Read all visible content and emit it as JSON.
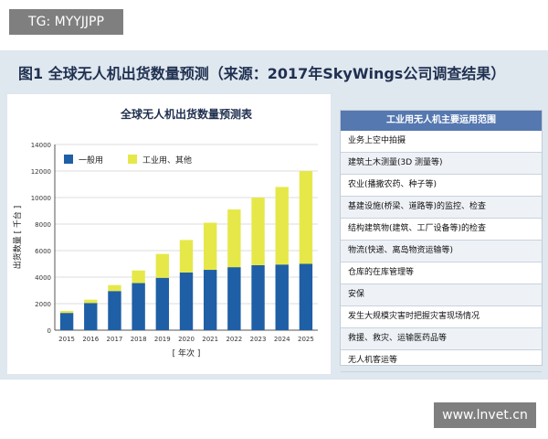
{
  "watermark_top": "TG: MYYJJPP",
  "watermark_bottom": "www.lnvet.cn",
  "figure_caption": "图1 全球无人机出货数量预测（来源：2017年SkyWings公司调查结果）",
  "table": {
    "header": "工业用无人机主要运用范围",
    "rows": [
      "业务上空中拍摄",
      "建筑土木测量(3D 测量等)",
      "农业(播撒农药、种子等)",
      "基建设施(桥梁、道路等)的监控、检查",
      "结构建筑物(建筑、工厂设备等)的检查",
      "物流(快递、离岛物资运输等)",
      "仓库的在库管理等",
      "安保",
      "发生大规模灾害时把握灾害现场情况",
      "救援、救灾、运输医药品等",
      "无人机客运等"
    ]
  },
  "chart_data": {
    "type": "bar",
    "stacked": true,
    "title": "全球无人机出货数量预测表",
    "xlabel": "[ 年次 ]",
    "ylabel": "出货数量 [ 千台 ]",
    "ylim": [
      0,
      14000
    ],
    "yticks": [
      0,
      2000,
      4000,
      6000,
      8000,
      10000,
      12000,
      14000
    ],
    "grid": true,
    "legend_position": "top-left",
    "categories": [
      "2015",
      "2016",
      "2017",
      "2018",
      "2019",
      "2020",
      "2021",
      "2022",
      "2023",
      "2024",
      "2025"
    ],
    "series": [
      {
        "name": "一般用",
        "color": "#1f5fa6",
        "values": [
          1300,
          2050,
          2950,
          3550,
          3950,
          4350,
          4550,
          4750,
          4900,
          4950,
          5000
        ]
      },
      {
        "name": "工业用、其他",
        "color": "#e6e84a",
        "values": [
          150,
          250,
          450,
          950,
          1800,
          2450,
          3550,
          4350,
          5100,
          5850,
          7000
        ]
      }
    ]
  }
}
